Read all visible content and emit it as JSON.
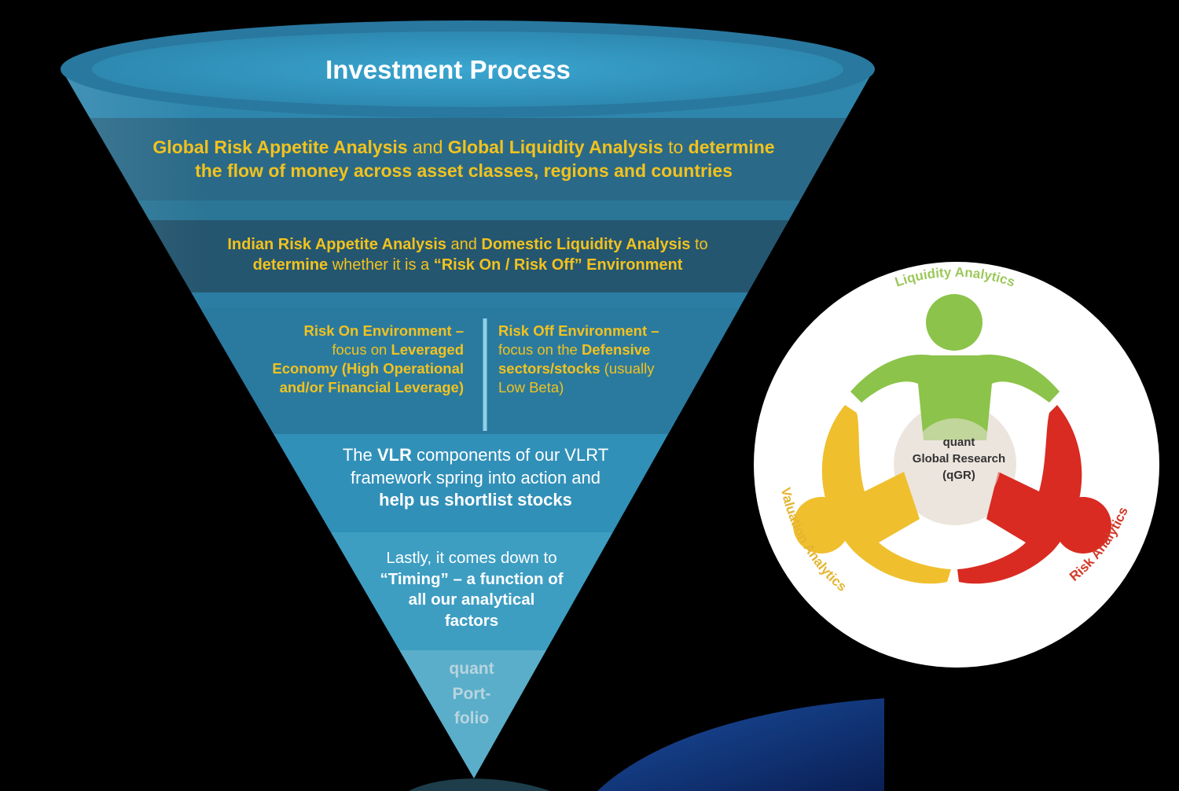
{
  "funnel": {
    "title": "Investment Process",
    "level1": {
      "b1": "Global Risk Appetite Analysis",
      "t1": " and ",
      "b2": "Global Liquidity Analysis",
      "t2": "  to ",
      "b3": "determine",
      "b4": "the flow of money across asset classes, regions and countries"
    },
    "level2": {
      "b1": "Indian Risk Appetite Analysis",
      "t1": " and ",
      "b2": "Domestic Liquidity Analysis",
      "t2": "  to",
      "b3": "determine",
      "t3": " whether it is a ",
      "b4": "“Risk On / Risk Off” Environment"
    },
    "risk_on": {
      "b1": "Risk On Environment –",
      "t1": "focus on ",
      "b2": " Leveraged",
      "b3": "Economy (High Operational",
      "b4": "and/or Financial Leverage)"
    },
    "risk_off": {
      "b1": "Risk Off Environment –",
      "t1": "focus on the ",
      "b2": "Defensive",
      "b3": "sectors/stocks",
      "t2": " (usually",
      "t3": "Low Beta)"
    },
    "vlr": {
      "t1": "The ",
      "b1": "VLR",
      "t2": " components of our VLRT",
      "t3": "framework spring into action and",
      "b2": "help us shortlist stocks"
    },
    "timing": {
      "t1": "Lastly, it comes down to",
      "b1": "“Timing” – a function of",
      "b2": "all our analytical",
      "b3": "factors"
    },
    "portfolio": [
      "quant",
      "Port-",
      "folio"
    ]
  },
  "circle": {
    "center": [
      "quant",
      "Global Research",
      "(qGR)"
    ],
    "arc_labels": {
      "top": "Liquidity Analytics",
      "left": "Valuation Analytics",
      "right": "Risk Analytics"
    }
  },
  "colors": {
    "background": "#000000",
    "funnel_band_dark": "#24566e",
    "funnel_band_mid": "#2d88ad",
    "funnel_rim": "#5ab8dc",
    "highlight_text": "#f2c21e",
    "green": "#8cc34a",
    "yellow": "#f0bf2d",
    "red": "#d92b22"
  }
}
